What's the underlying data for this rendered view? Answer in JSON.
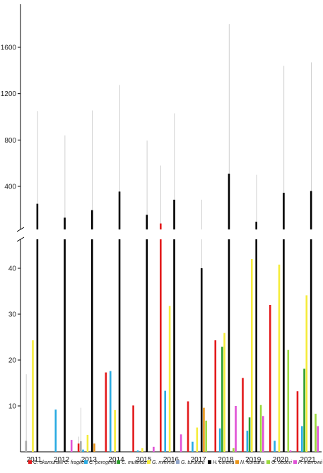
{
  "chart_data": {
    "type": "bar",
    "broken_axis": true,
    "categories": [
      "2011",
      "2012",
      "2013",
      "2014",
      "2015",
      "2016",
      "2017",
      "2018",
      "2019",
      "2020",
      "2021"
    ],
    "y_upper": {
      "range": [
        55,
        1900
      ],
      "ticks": [
        400,
        800,
        1200,
        1600
      ]
    },
    "y_lower": {
      "range": [
        0,
        46
      ],
      "ticks": [
        10,
        20,
        30,
        40
      ]
    },
    "series": [
      {
        "name": "C. okamurae",
        "color": "#e31a1c",
        "values": [
          0,
          0,
          1.8,
          17.3,
          10.1,
          80,
          11,
          24.3,
          16.1,
          32,
          13.2
        ],
        "err": [
          0,
          0,
          1.5,
          0,
          0,
          500,
          0,
          0,
          0,
          0,
          0
        ]
      },
      {
        "name": "C. fragile",
        "color": "#aaaaaa",
        "values": [
          2.4,
          0,
          2.3,
          0,
          0,
          0,
          0,
          0,
          0,
          0,
          0
        ],
        "err": [
          14.5,
          0,
          7.3,
          0,
          0,
          0,
          0,
          0,
          0,
          0,
          0
        ]
      },
      {
        "name": "C. peregrina",
        "color": "#29abe2",
        "values": [
          0,
          9.2,
          0.5,
          17.6,
          0.3,
          13.3,
          2.2,
          5.1,
          4.6,
          2.4,
          5.6
        ],
        "err": [
          0,
          0,
          0,
          0,
          0,
          0,
          0,
          0,
          0,
          0,
          0
        ]
      },
      {
        "name": "C. multifida",
        "color": "#2e9e2e",
        "values": [
          0,
          0,
          0,
          0,
          0,
          0,
          0,
          22.9,
          7.5,
          0,
          18.1
        ],
        "err": [
          0,
          0,
          0,
          0,
          0,
          0,
          0,
          0,
          0,
          0,
          0
        ]
      },
      {
        "name": "G. minima",
        "color": "#f5ec3a",
        "values": [
          24.3,
          0,
          3.7,
          9.1,
          0.8,
          31.8,
          5.3,
          25.9,
          42,
          40.8,
          34.1
        ],
        "err": [
          0,
          0,
          0,
          0,
          0,
          0,
          0,
          0,
          0,
          0,
          0
        ]
      },
      {
        "name": "G. turuturu",
        "color": "#8fa3c8",
        "values": [
          0,
          0,
          0,
          0,
          0,
          0,
          0,
          0,
          0,
          0,
          0
        ],
        "err": [
          0,
          0,
          0,
          0,
          0,
          0,
          0,
          0,
          0,
          0,
          0
        ]
      },
      {
        "name": "H. corona",
        "color": "#000000",
        "values": [
          250,
          130,
          195,
          355,
          155,
          285,
          40,
          510,
          95,
          345,
          360
        ],
        "err": [
          800,
          710,
          860,
          920,
          640,
          745,
          245,
          1290,
          405,
          1095,
          1110
        ]
      },
      {
        "name": "N. koreana",
        "color": "#e8941a",
        "values": [
          0,
          0,
          1.8,
          0,
          0,
          0,
          9.6,
          0,
          0,
          0,
          0
        ],
        "err": [
          0,
          0,
          0,
          0,
          0,
          0,
          0,
          0,
          0,
          0,
          0
        ]
      },
      {
        "name": "O. oederi",
        "color": "#9ad93c",
        "values": [
          0,
          0,
          0,
          0,
          0,
          0,
          6.8,
          0.8,
          10.2,
          22.2,
          8.3
        ],
        "err": [
          0,
          0,
          0,
          0,
          0,
          0,
          0,
          0,
          0,
          0,
          0
        ]
      },
      {
        "name": "P. morrowii",
        "color": "#e052d6",
        "values": [
          0,
          2.6,
          0,
          0,
          1.1,
          3.8,
          0,
          10,
          7.8,
          0.3,
          5.6
        ],
        "err": [
          0,
          0,
          0,
          0,
          0,
          0,
          0,
          0,
          0,
          0,
          0
        ]
      }
    ],
    "title": "",
    "xlabel": "",
    "ylabel": "",
    "legend_position": "bottom",
    "grid": false
  }
}
